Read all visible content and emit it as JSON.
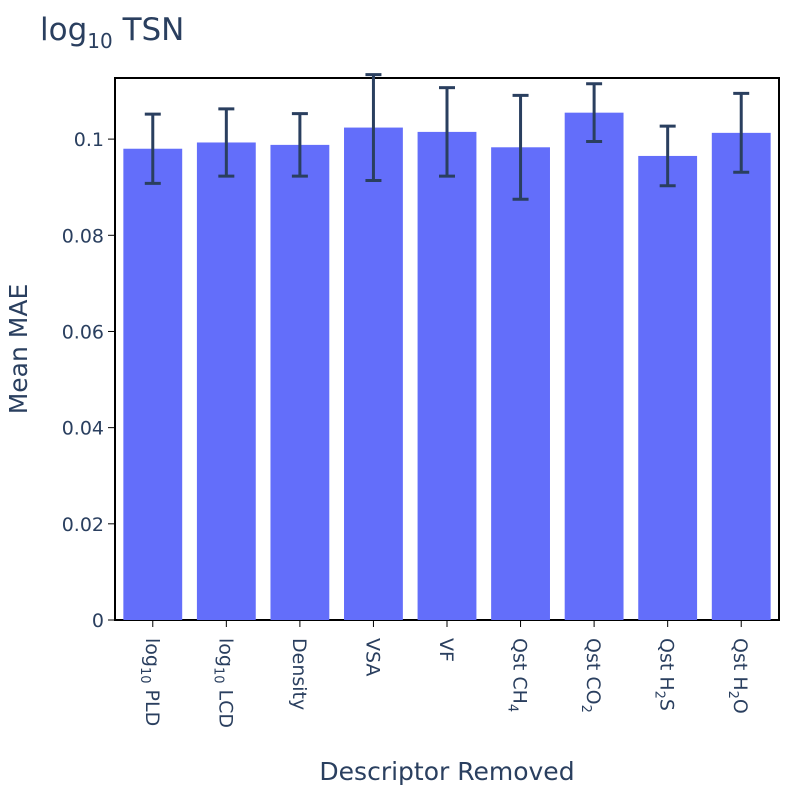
{
  "chart_data": {
    "type": "bar",
    "title": "log10 TSN",
    "title_base": "log",
    "title_sub": "10",
    "title_rest": " TSN",
    "xlabel": "Descriptor Removed",
    "ylabel": "Mean MAE",
    "ylim": [
      0,
      0.1125
    ],
    "yticks": [
      0,
      0.02,
      0.04,
      0.06,
      0.08,
      0.1
    ],
    "ytick_labels": [
      "0",
      "0.02",
      "0.04",
      "0.06",
      "0.08",
      "0.1"
    ],
    "grid": false,
    "bar_color": "#636efa",
    "errorbar_color": "#2a3f5f",
    "categories": [
      "log10 PLD",
      "log10 LCD",
      "Density",
      "VSA",
      "VF",
      "Qst CH4",
      "Qst CO2",
      "Qst H2S",
      "Qst H2O"
    ],
    "category_labels": [
      [
        {
          "t": "log"
        },
        {
          "t": "10",
          "sub": true
        },
        {
          "t": " PLD"
        }
      ],
      [
        {
          "t": "log"
        },
        {
          "t": "10",
          "sub": true
        },
        {
          "t": " LCD"
        }
      ],
      [
        {
          "t": "Density"
        }
      ],
      [
        {
          "t": "VSA"
        }
      ],
      [
        {
          "t": "VF"
        }
      ],
      [
        {
          "t": "Qst CH"
        },
        {
          "t": "4",
          "sub": true
        }
      ],
      [
        {
          "t": "Qst CO"
        },
        {
          "t": "2",
          "sub": true
        }
      ],
      [
        {
          "t": "Qst H"
        },
        {
          "t": "2",
          "sub": true
        },
        {
          "t": "S"
        }
      ],
      [
        {
          "t": "Qst H"
        },
        {
          "t": "2",
          "sub": true
        },
        {
          "t": "O"
        }
      ]
    ],
    "values": [
      0.098,
      0.0993,
      0.0988,
      0.1024,
      0.1015,
      0.0983,
      0.1055,
      0.0965,
      0.1013
    ],
    "error": [
      0.0072,
      0.007,
      0.0065,
      0.011,
      0.0092,
      0.0108,
      0.006,
      0.0062,
      0.0082
    ]
  }
}
